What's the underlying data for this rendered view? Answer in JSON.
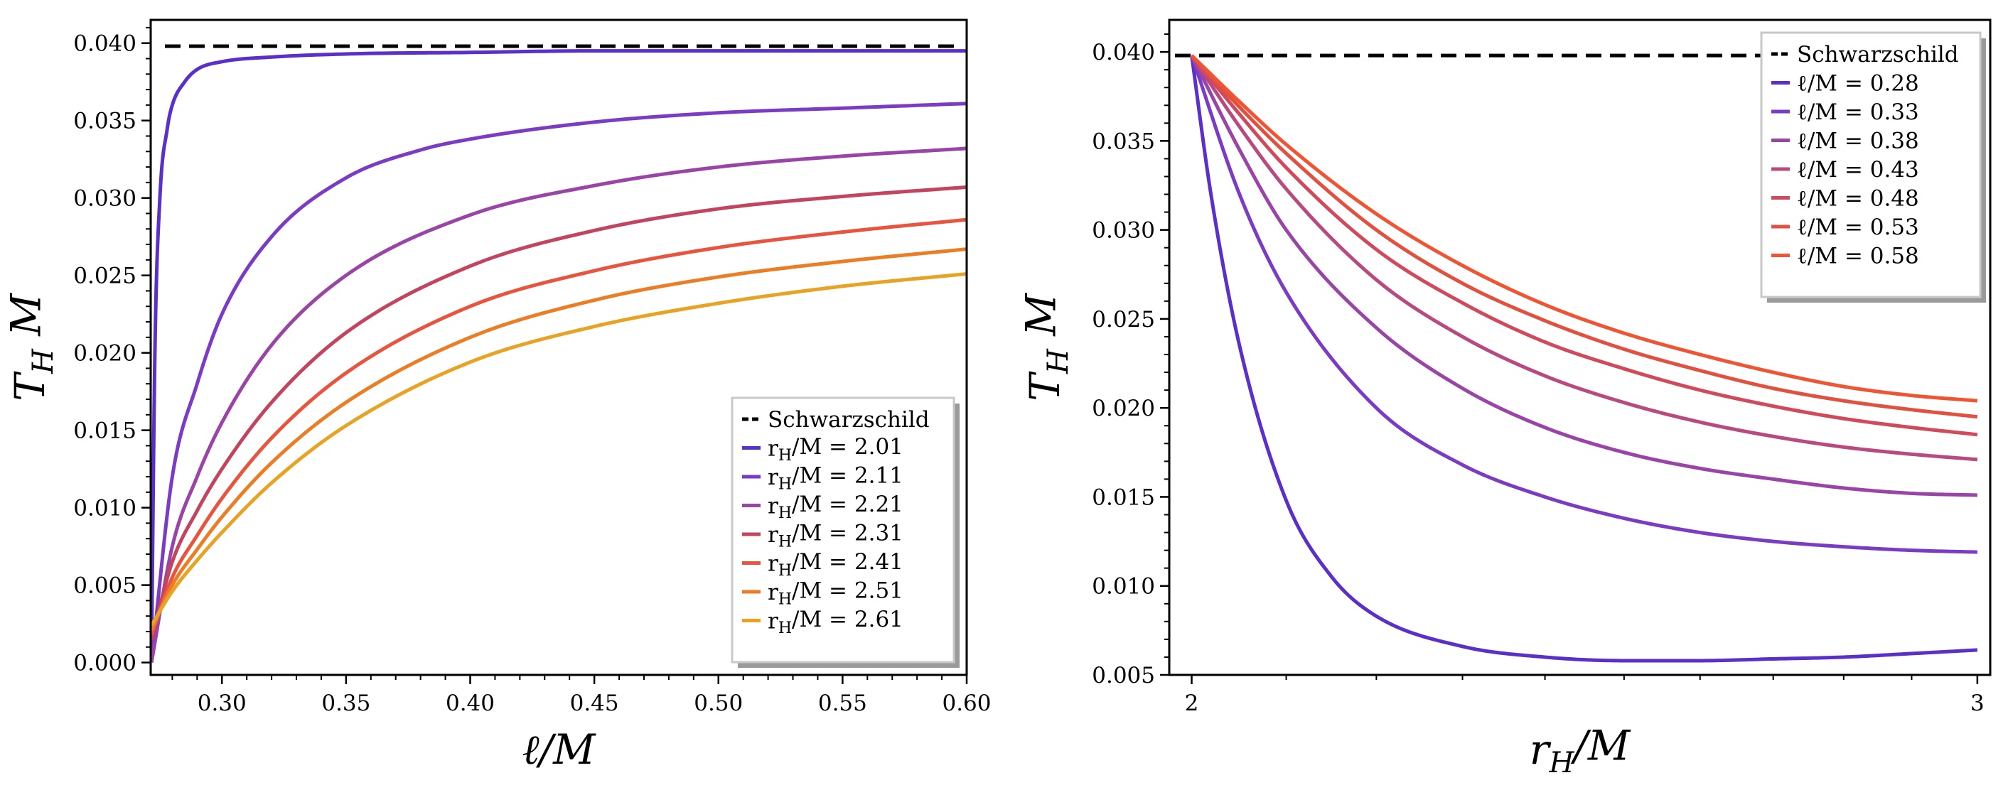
{
  "chart_data": [
    {
      "type": "line",
      "xlabel": "ℓ/M",
      "ylabel": "T_H M",
      "xlim": [
        0.2713,
        0.6
      ],
      "ylim": [
        -0.0008,
        0.0415
      ],
      "xticks": [
        "0.30",
        "0.35",
        "0.40",
        "0.45",
        "0.50",
        "0.55",
        "0.60"
      ],
      "xtick_values": [
        0.3,
        0.35,
        0.4,
        0.45,
        0.5,
        0.55,
        0.6
      ],
      "yticks": [
        "0.000",
        "0.005",
        "0.010",
        "0.015",
        "0.020",
        "0.025",
        "0.030",
        "0.035",
        "0.040"
      ],
      "ytick_values": [
        0.0,
        0.005,
        0.01,
        0.015,
        0.02,
        0.025,
        0.03,
        0.035,
        0.04
      ],
      "legend_position": "lower-right",
      "reference": {
        "name": "Schwarzschild",
        "value": 0.0398,
        "color": "#000000",
        "style": "dashed"
      },
      "series": [
        {
          "name": "r_H/M = 2.01",
          "color": "#5b2fc9",
          "x": [
            0.2716,
            0.273,
            0.275,
            0.278,
            0.28,
            0.285,
            0.29,
            0.3,
            0.32,
            0.35,
            0.4,
            0.45,
            0.5,
            0.55,
            0.6
          ],
          "y": [
            0.0,
            0.02,
            0.03,
            0.0345,
            0.036,
            0.0375,
            0.0383,
            0.0388,
            0.0391,
            0.0393,
            0.0394,
            0.0395,
            0.0395,
            0.0395,
            0.0395
          ]
        },
        {
          "name": "r_H/M = 2.11",
          "color": "#7b3bc4",
          "x": [
            0.2716,
            0.28,
            0.29,
            0.3,
            0.32,
            0.35,
            0.38,
            0.4,
            0.45,
            0.5,
            0.55,
            0.6
          ],
          "y": [
            0.0,
            0.012,
            0.018,
            0.0225,
            0.0275,
            0.0313,
            0.0331,
            0.0338,
            0.0349,
            0.0355,
            0.0358,
            0.0361
          ]
        },
        {
          "name": "r_H/M = 2.21",
          "color": "#9a44a8",
          "x": [
            0.2716,
            0.28,
            0.29,
            0.3,
            0.32,
            0.35,
            0.4,
            0.45,
            0.5,
            0.55,
            0.6
          ],
          "y": [
            0.0,
            0.0075,
            0.012,
            0.0155,
            0.0205,
            0.025,
            0.0289,
            0.0308,
            0.032,
            0.0327,
            0.0332
          ]
        },
        {
          "name": "r_H/M = 2.31",
          "color": "#c2445e",
          "x": [
            0.2716,
            0.28,
            0.29,
            0.3,
            0.32,
            0.35,
            0.4,
            0.45,
            0.5,
            0.55,
            0.6
          ],
          "y": [
            0.0015,
            0.0065,
            0.0098,
            0.0125,
            0.0168,
            0.0213,
            0.0256,
            0.0279,
            0.0293,
            0.0301,
            0.0307
          ]
        },
        {
          "name": "r_H/M = 2.41",
          "color": "#e9543e",
          "x": [
            0.2716,
            0.28,
            0.29,
            0.3,
            0.32,
            0.35,
            0.4,
            0.45,
            0.5,
            0.55,
            0.6
          ],
          "y": [
            0.0018,
            0.0055,
            0.0082,
            0.0106,
            0.0145,
            0.0187,
            0.023,
            0.0253,
            0.0268,
            0.0278,
            0.0286
          ]
        },
        {
          "name": "r_H/M = 2.51",
          "color": "#eb7e25",
          "x": [
            0.2716,
            0.28,
            0.29,
            0.3,
            0.32,
            0.35,
            0.4,
            0.45,
            0.5,
            0.55,
            0.6
          ],
          "y": [
            0.0021,
            0.005,
            0.0073,
            0.0094,
            0.0129,
            0.0168,
            0.021,
            0.0234,
            0.0249,
            0.0259,
            0.0267
          ]
        },
        {
          "name": "r_H/M = 2.61",
          "color": "#e8a324",
          "x": [
            0.2716,
            0.28,
            0.29,
            0.3,
            0.32,
            0.35,
            0.4,
            0.45,
            0.5,
            0.55,
            0.6
          ],
          "y": [
            0.0024,
            0.0046,
            0.0066,
            0.0084,
            0.0116,
            0.0153,
            0.0194,
            0.0217,
            0.0232,
            0.0243,
            0.0251
          ]
        }
      ]
    },
    {
      "type": "line",
      "xlabel": "r_H/M",
      "ylabel": "T_H M",
      "xscale": "log",
      "xlim": [
        1.977,
        3.02
      ],
      "ylim": [
        0.005,
        0.0418
      ],
      "xticks": [
        "2",
        "3"
      ],
      "xtick_values": [
        2,
        3
      ],
      "yticks": [
        "0.005",
        "0.010",
        "0.015",
        "0.020",
        "0.025",
        "0.030",
        "0.035",
        "0.040"
      ],
      "ytick_values": [
        0.005,
        0.01,
        0.015,
        0.02,
        0.025,
        0.03,
        0.035,
        0.04
      ],
      "legend_position": "top-right",
      "reference": {
        "name": "Schwarzschild",
        "value": 0.0398,
        "color": "#000000",
        "style": "dashed"
      },
      "series": [
        {
          "name": "ℓ/M = 0.28",
          "color": "#5b2fc9",
          "x": [
            2.0,
            2.02,
            2.05,
            2.1,
            2.15,
            2.2,
            2.3,
            2.4,
            2.5,
            2.6,
            2.7,
            2.8,
            2.9,
            3.0
          ],
          "y": [
            0.0398,
            0.032,
            0.0235,
            0.0148,
            0.0105,
            0.0083,
            0.0066,
            0.006,
            0.0058,
            0.0058,
            0.0059,
            0.006,
            0.0062,
            0.0064
          ]
        },
        {
          "name": "ℓ/M = 0.33",
          "color": "#7b3bc4",
          "x": [
            2.0,
            2.05,
            2.1,
            2.2,
            2.3,
            2.4,
            2.5,
            2.6,
            2.7,
            2.8,
            2.9,
            3.0
          ],
          "y": [
            0.0398,
            0.032,
            0.0265,
            0.02,
            0.0168,
            0.015,
            0.0138,
            0.013,
            0.0125,
            0.0122,
            0.012,
            0.0119
          ]
        },
        {
          "name": "ℓ/M = 0.38",
          "color": "#9a44a8",
          "x": [
            2.0,
            2.05,
            2.1,
            2.2,
            2.3,
            2.4,
            2.5,
            2.6,
            2.7,
            2.8,
            2.9,
            3.0
          ],
          "y": [
            0.0398,
            0.0345,
            0.03,
            0.0245,
            0.0211,
            0.0189,
            0.0175,
            0.0166,
            0.016,
            0.0155,
            0.0152,
            0.0151
          ]
        },
        {
          "name": "ℓ/M = 0.43",
          "color": "#b84a80",
          "x": [
            2.0,
            2.05,
            2.1,
            2.2,
            2.3,
            2.4,
            2.5,
            2.6,
            2.7,
            2.8,
            2.9,
            3.0
          ],
          "y": [
            0.0398,
            0.0358,
            0.0323,
            0.0272,
            0.024,
            0.0218,
            0.0203,
            0.0192,
            0.0184,
            0.0178,
            0.0174,
            0.0171
          ]
        },
        {
          "name": "ℓ/M = 0.48",
          "color": "#d04a5c",
          "x": [
            2.0,
            2.05,
            2.1,
            2.2,
            2.3,
            2.4,
            2.5,
            2.6,
            2.7,
            2.8,
            2.9,
            3.0
          ],
          "y": [
            0.0398,
            0.0365,
            0.0335,
            0.0289,
            0.0259,
            0.0237,
            0.0222,
            0.021,
            0.0201,
            0.0194,
            0.0189,
            0.0185
          ]
        },
        {
          "name": "ℓ/M = 0.53",
          "color": "#e2503f",
          "x": [
            2.0,
            2.05,
            2.1,
            2.2,
            2.3,
            2.4,
            2.5,
            2.6,
            2.7,
            2.8,
            2.9,
            3.0
          ],
          "y": [
            0.0398,
            0.0369,
            0.0343,
            0.03,
            0.027,
            0.0249,
            0.0233,
            0.0221,
            0.0211,
            0.0204,
            0.0199,
            0.0195
          ]
        },
        {
          "name": "ℓ/M = 0.58",
          "color": "#f05533",
          "x": [
            2.0,
            2.05,
            2.1,
            2.2,
            2.3,
            2.4,
            2.5,
            2.6,
            2.7,
            2.8,
            2.9,
            3.0
          ],
          "y": [
            0.0398,
            0.0372,
            0.0348,
            0.0309,
            0.028,
            0.0258,
            0.0242,
            0.023,
            0.022,
            0.0212,
            0.0207,
            0.0204
          ]
        }
      ]
    }
  ]
}
